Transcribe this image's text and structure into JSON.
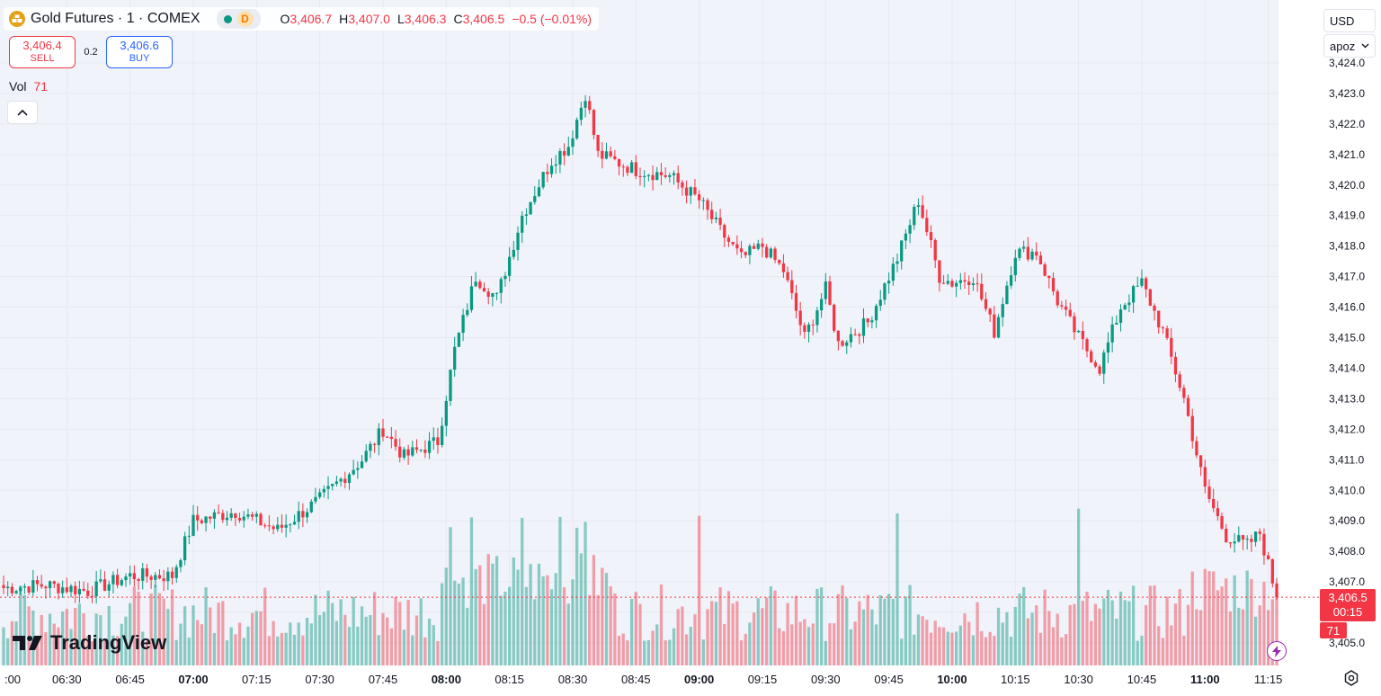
{
  "header": {
    "title": "Gold Futures · 1 · COMEX",
    "timeframe_badge": "D",
    "ohlc": {
      "o_label": "O",
      "o": "3,406.7",
      "h_label": "H",
      "h": "3,407.0",
      "l_label": "L",
      "l": "3,406.3",
      "c_label": "C",
      "c": "3,406.5",
      "change": "−0.5 (−0.01%)"
    }
  },
  "trade": {
    "sell_price": "3,406.4",
    "sell_label": "SELL",
    "spread": "0.2",
    "buy_price": "3,406.6",
    "buy_label": "BUY"
  },
  "volume_legend": {
    "label": "Vol",
    "value": "71"
  },
  "right_controls": {
    "currency": "USD",
    "mode": "apoz"
  },
  "price_tag": {
    "price": "3,406.5",
    "countdown": "00:15",
    "volume": "71"
  },
  "brand": "TradingView",
  "colors": {
    "up": "#089981",
    "down": "#f23645",
    "background": "#f0f3fa",
    "accent": "#2962ff"
  },
  "icons": [
    "gold-logo-icon",
    "status-dot-icon",
    "chevron-up-icon",
    "chevron-down-icon",
    "lightning-icon",
    "settings-icon",
    "tradingview-logo-icon"
  ],
  "chart_data": {
    "type": "candlestick",
    "symbol": "Gold Futures",
    "interval": "1",
    "exchange": "COMEX",
    "x_tick_labels": [
      ":00",
      "06:30",
      "06:45",
      "07:00",
      "07:15",
      "07:30",
      "07:45",
      "08:00",
      "08:15",
      "08:30",
      "08:45",
      "09:00",
      "09:15",
      "09:30",
      "09:45",
      "10:00",
      "10:15",
      "10:30",
      "10:45",
      "11:00",
      "11:15"
    ],
    "bold_x_ticks": [
      "07:00",
      "08:00",
      "09:00",
      "10:00",
      "11:00"
    ],
    "y_tick_labels": [
      "3,405.0",
      "3,406.0",
      "3,407.0",
      "3,408.0",
      "3,409.0",
      "3,410.0",
      "3,411.0",
      "3,412.0",
      "3,413.0",
      "3,414.0",
      "3,415.0",
      "3,416.0",
      "3,417.0",
      "3,418.0",
      "3,419.0",
      "3,420.0",
      "3,421.0",
      "3,422.0",
      "3,423.0",
      "3,424.0"
    ],
    "ylim": [
      3404.9,
      3424.2
    ],
    "last_close": 3406.5,
    "close_anchors": [
      [
        "06:15",
        3406.8
      ],
      [
        "06:25",
        3406.9
      ],
      [
        "06:35",
        3406.7
      ],
      [
        "06:45",
        3407.2
      ],
      [
        "06:55",
        3407.2
      ],
      [
        "07:00",
        3409.0
      ],
      [
        "07:10",
        3409.3
      ],
      [
        "07:20",
        3408.7
      ],
      [
        "07:30",
        3409.7
      ],
      [
        "07:40",
        3411.0
      ],
      [
        "07:45",
        3412.0
      ],
      [
        "07:50",
        3411.1
      ],
      [
        "07:58",
        3411.6
      ],
      [
        "08:02",
        3414.6
      ],
      [
        "08:07",
        3417.0
      ],
      [
        "08:12",
        3416.3
      ],
      [
        "08:18",
        3419.0
      ],
      [
        "08:25",
        3420.8
      ],
      [
        "08:29",
        3421.3
      ],
      [
        "08:33",
        3423.0
      ],
      [
        "08:36",
        3421.0
      ],
      [
        "08:45",
        3420.5
      ],
      [
        "08:53",
        3420.3
      ],
      [
        "09:00",
        3419.5
      ],
      [
        "09:05",
        3418.5
      ],
      [
        "09:10",
        3417.6
      ],
      [
        "09:15",
        3418.0
      ],
      [
        "09:20",
        3417.2
      ],
      [
        "09:25",
        3415.0
      ],
      [
        "09:30",
        3416.6
      ],
      [
        "09:33",
        3414.8
      ],
      [
        "09:40",
        3415.5
      ],
      [
        "09:47",
        3417.6
      ],
      [
        "09:52",
        3419.5
      ],
      [
        "09:57",
        3417.0
      ],
      [
        "10:00",
        3416.8
      ],
      [
        "10:05",
        3417.0
      ],
      [
        "10:10",
        3415.2
      ],
      [
        "10:15",
        3417.8
      ],
      [
        "10:20",
        3417.8
      ],
      [
        "10:25",
        3416.2
      ],
      [
        "10:30",
        3415.0
      ],
      [
        "10:35",
        3414.0
      ],
      [
        "10:40",
        3416.0
      ],
      [
        "10:45",
        3416.8
      ],
      [
        "10:50",
        3415.2
      ],
      [
        "10:55",
        3413.0
      ],
      [
        "11:00",
        3410.0
      ],
      [
        "11:05",
        3408.5
      ],
      [
        "11:10",
        3408.2
      ],
      [
        "11:13",
        3408.6
      ],
      [
        "11:17",
        3406.5
      ]
    ],
    "volume_peak_times": [
      "08:01",
      "08:06",
      "08:18",
      "08:27",
      "08:31",
      "08:33",
      "09:00",
      "09:47",
      "10:30"
    ],
    "grid": true,
    "legend_position": "top-left",
    "current_price_line": "dotted"
  }
}
